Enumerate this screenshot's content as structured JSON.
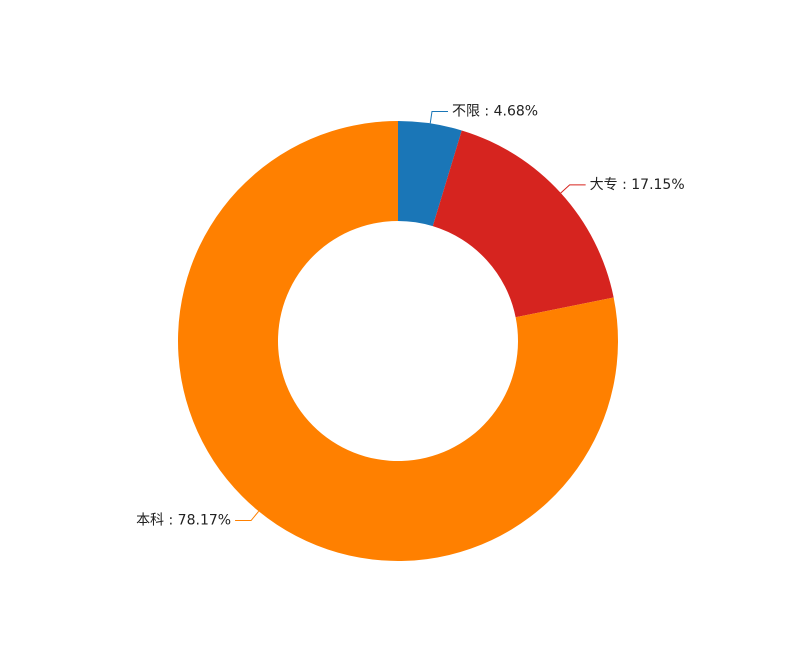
{
  "chart_data": {
    "type": "donut",
    "categories": [
      "不限",
      "大专",
      "本科"
    ],
    "values": [
      4.68,
      17.15,
      78.17
    ],
    "value_labels": [
      "不限 : 4.68%",
      "大专 : 17.15%",
      "本科 : 78.17%"
    ],
    "colors": [
      "#1a76b7",
      "#d6241f",
      "#ff8000"
    ]
  }
}
